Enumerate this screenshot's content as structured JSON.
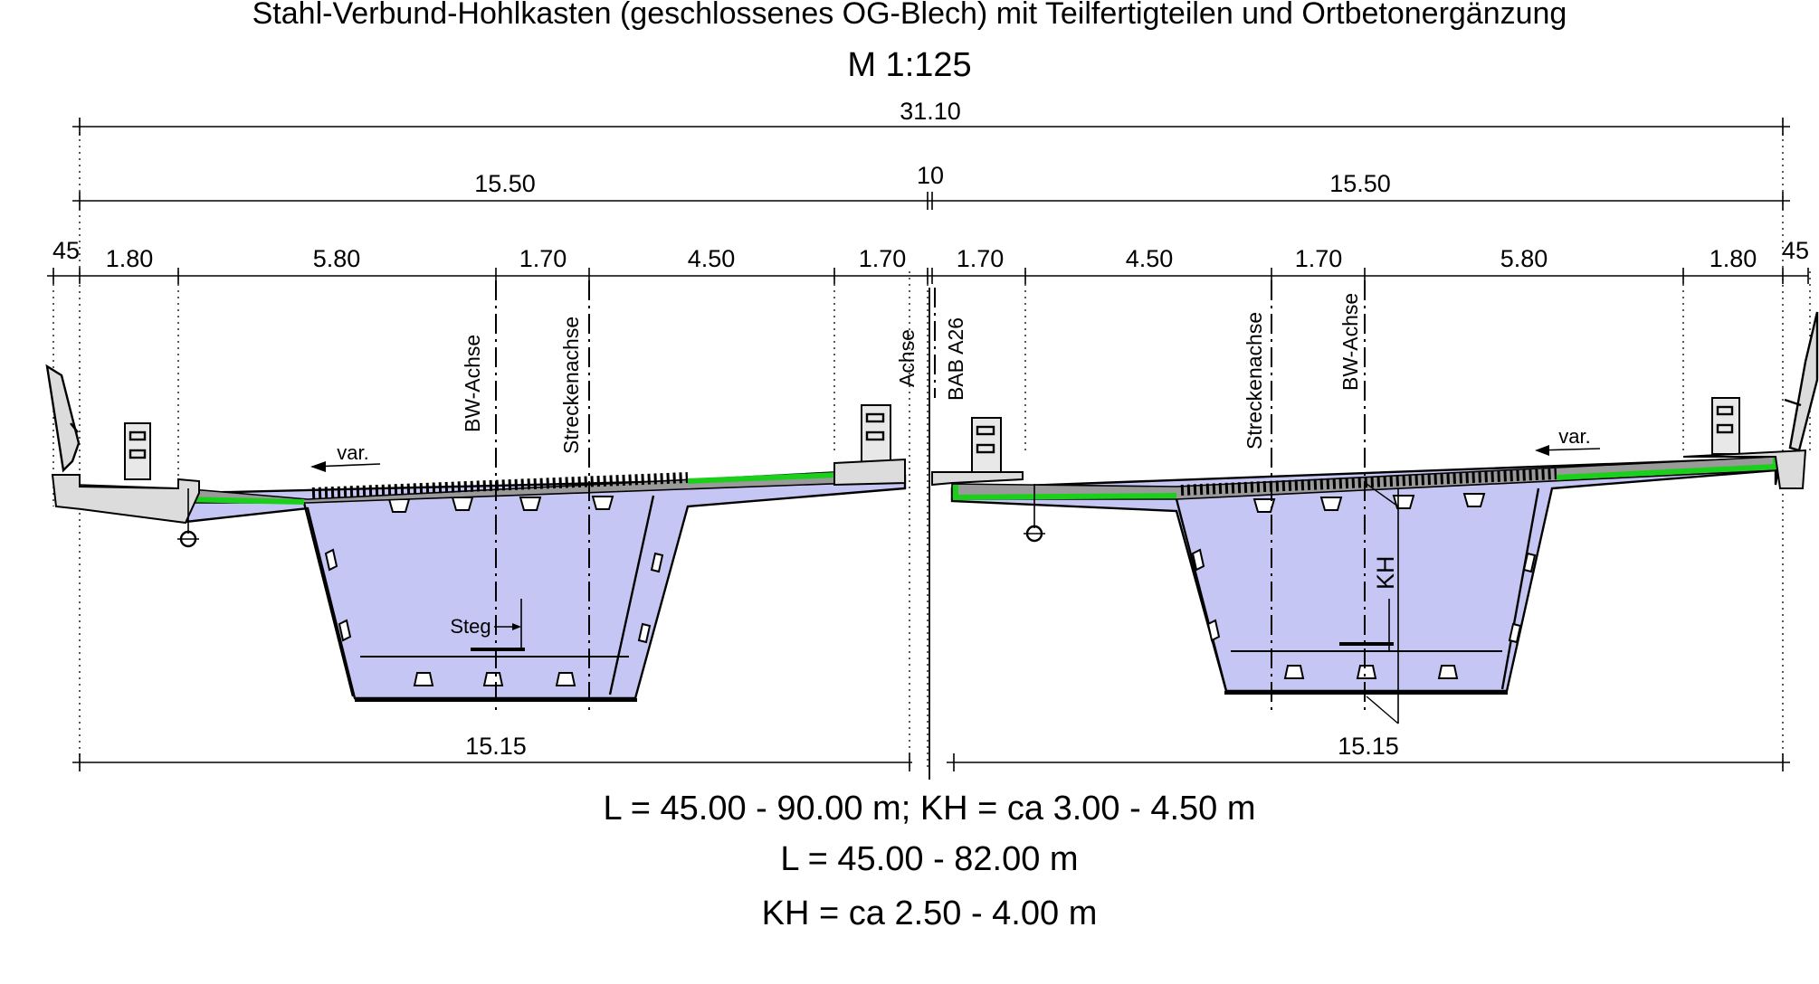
{
  "drawing": {
    "title": "Stahl-Verbund-Hohlkasten (geschlossenes OG-Blech) mit Teilfertigteilen und Ortbetonergänzung",
    "scale": "M 1:125"
  },
  "dimensions": {
    "total": "31.10",
    "left_half": "15.50",
    "gap": "10",
    "right_half": "15.50",
    "left_edge": "45",
    "right_edge": "45",
    "left_segments": [
      "1.80",
      "5.80",
      "1.70",
      "4.50",
      "1.70"
    ],
    "right_segments": [
      "1.70",
      "4.50",
      "1.70",
      "5.80",
      "1.80"
    ],
    "bottom_left": "15.15",
    "bottom_right": "15.15"
  },
  "labels": {
    "bw_axis": "BW-Achse",
    "track_axis": "Streckenachse",
    "center_axis": "Achse",
    "bab": "BAB A26",
    "var": "var.",
    "steg": "Steg",
    "kh": "KH"
  },
  "notes": [
    "L = 45.00 - 90.00 m; KH = ca 3.00 - 4.50 m",
    "L = 45.00 - 82.00 m",
    "KH = ca 2.50 - 4.00 m"
  ],
  "colors": {
    "steel_box": "#c6c6f4",
    "waterproofing": "#1bd01b",
    "pavement": "#9a9a9a"
  }
}
